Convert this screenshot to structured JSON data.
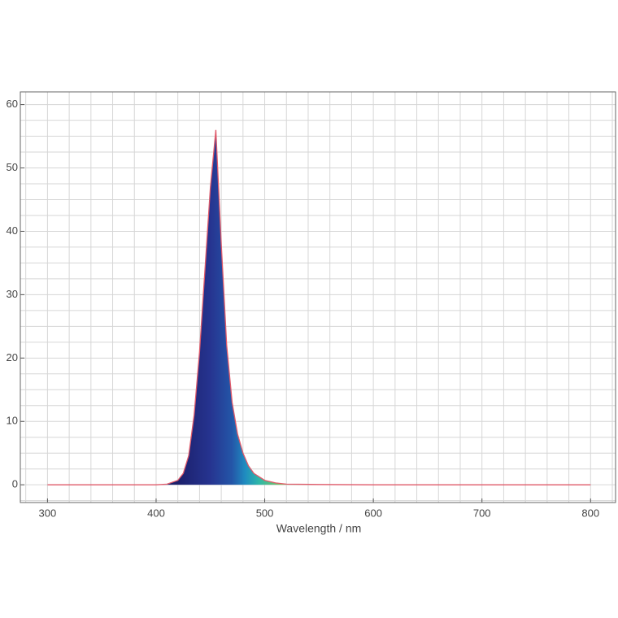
{
  "chart_data": {
    "type": "area",
    "xlabel": "Wavelength / nm",
    "x": [
      300,
      400,
      410,
      420,
      425,
      430,
      435,
      440,
      445,
      450,
      455,
      460,
      465,
      470,
      475,
      480,
      485,
      490,
      500,
      510,
      520,
      550,
      600,
      700,
      800
    ],
    "series": [
      {
        "color": "#e05a6a",
        "values": [
          0,
          0,
          0.1,
          0.7,
          1.8,
          4.6,
          11,
          21,
          34,
          47,
          56,
          38,
          22,
          13,
          8,
          5,
          3,
          1.8,
          0.7,
          0.3,
          0.1,
          0.05,
          0,
          0,
          0
        ]
      }
    ],
    "fill_stops": [
      {
        "x": 420,
        "color": "#1b1f6b"
      },
      {
        "x": 450,
        "color": "#263490"
      },
      {
        "x": 470,
        "color": "#2456a8"
      },
      {
        "x": 482,
        "color": "#1f8cc0"
      },
      {
        "x": 495,
        "color": "#2fb8a8"
      },
      {
        "x": 515,
        "color": "#7cc060"
      }
    ],
    "xlim": [
      275,
      823
    ],
    "ylim": [
      -2.8,
      62
    ],
    "xticks": [
      300,
      400,
      500,
      600,
      700,
      800
    ],
    "yticks": [
      0,
      10,
      20,
      30,
      40,
      50,
      60
    ],
    "x_grid": [
      280,
      300,
      320,
      340,
      360,
      380,
      400,
      420,
      440,
      460,
      480,
      500,
      520,
      540,
      560,
      580,
      600,
      620,
      640,
      660,
      680,
      700,
      720,
      740,
      760,
      780,
      800,
      820
    ],
    "y_grid": [
      -2.5,
      0,
      2.5,
      5,
      7.5,
      10,
      12.5,
      15,
      17.5,
      20,
      22.5,
      25,
      27.5,
      30,
      32.5,
      35,
      37.5,
      40,
      42.5,
      45,
      47.5,
      50,
      52.5,
      55,
      57.5,
      60
    ],
    "grid": true
  }
}
